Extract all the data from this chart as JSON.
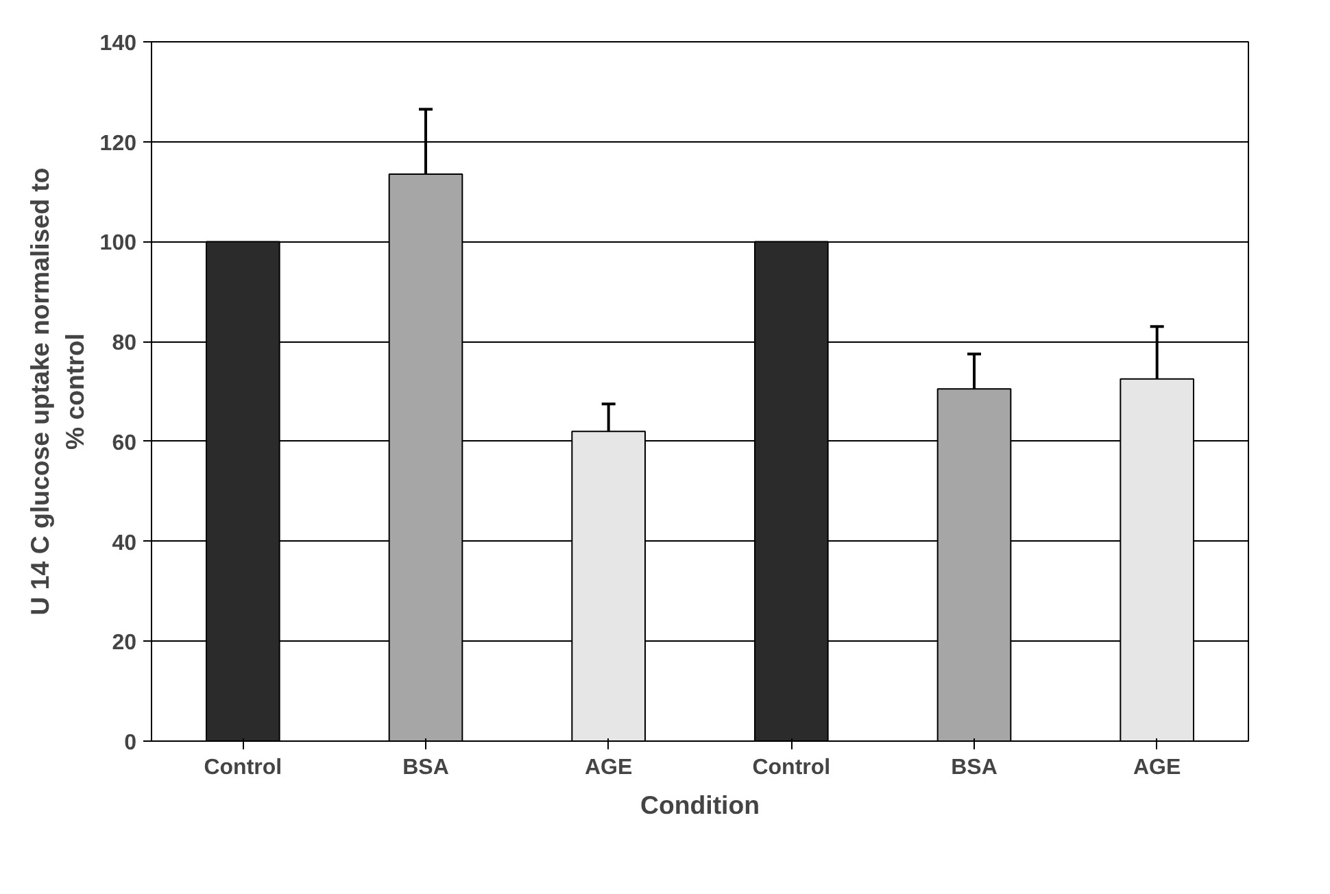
{
  "chart_data": {
    "type": "bar",
    "xlabel": "Condition",
    "ylabel": "U 14 C glucose uptake normalised to\n% control",
    "categories": [
      "Control",
      "BSA",
      "AGE",
      "Control",
      "BSA",
      "AGE"
    ],
    "values": [
      100,
      113.5,
      62,
      100,
      70.5,
      72.5
    ],
    "errors": [
      null,
      13,
      5.5,
      null,
      7,
      10.5
    ],
    "colors": [
      "#2b2b2b",
      "#a6a6a6",
      "#e6e6e6",
      "#2b2b2b",
      "#a6a6a6",
      "#e6e6e6"
    ],
    "ylim": [
      0,
      140
    ],
    "yticks": [
      0,
      20,
      40,
      60,
      80,
      100,
      120,
      140
    ],
    "grid": "y"
  }
}
